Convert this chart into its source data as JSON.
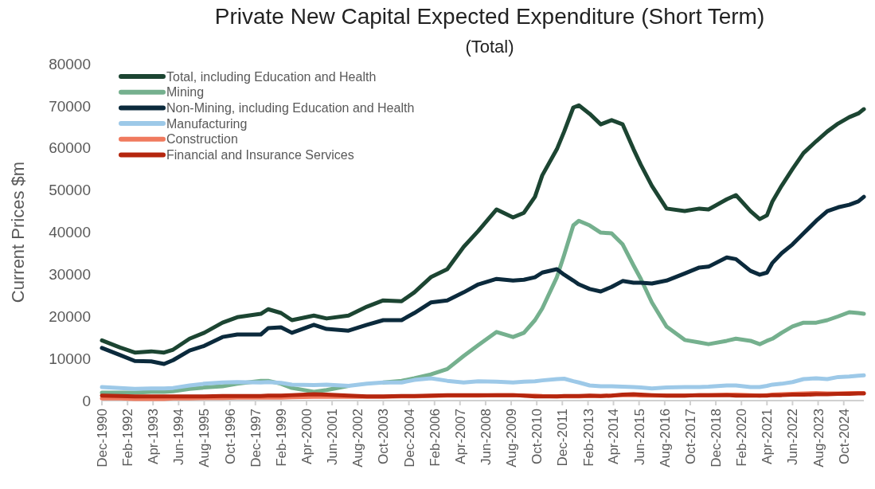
{
  "chart_data": {
    "type": "line",
    "title": "Private New Capital Expected Expenditure (Short Term)",
    "subtitle": "(Total)",
    "ylabel": "Current Prices $m",
    "x": [
      "1990-12",
      "1991-10",
      "1992-06",
      "1993-03",
      "1993-10",
      "1994-03",
      "1994-12",
      "1995-08",
      "1996-06",
      "1997-02",
      "1998-03",
      "1998-07",
      "1999-02",
      "1999-08",
      "2000-08",
      "2001-03",
      "2002-03",
      "2003-01",
      "2003-10",
      "2004-08",
      "2005-03",
      "2005-12",
      "2006-09",
      "2007-06",
      "2008-02",
      "2008-12",
      "2009-09",
      "2010-03",
      "2010-09",
      "2011-01",
      "2011-09",
      "2012-01",
      "2012-06",
      "2012-09",
      "2013-03",
      "2013-09",
      "2014-03",
      "2014-09",
      "2015-03",
      "2015-07",
      "2016-01",
      "2016-09",
      "2017-07",
      "2018-03",
      "2018-08",
      "2019-06",
      "2019-11",
      "2020-07",
      "2020-12",
      "2021-04",
      "2021-07",
      "2021-12",
      "2022-06",
      "2022-12",
      "2023-07",
      "2024-01",
      "2024-07",
      "2025-01",
      "2025-06",
      "2025-09"
    ],
    "series": [
      {
        "name": "Total, including Education and Health",
        "color": "#1c4532",
        "values": [
          14300,
          12600,
          11400,
          11700,
          11400,
          12100,
          14700,
          16100,
          18500,
          19800,
          20600,
          21700,
          20800,
          19100,
          20200,
          19500,
          20200,
          22300,
          23800,
          23600,
          25700,
          29300,
          31200,
          36500,
          40300,
          45400,
          43500,
          44600,
          48400,
          53500,
          59700,
          63900,
          69600,
          70100,
          68100,
          65600,
          66600,
          65600,
          59700,
          56000,
          51000,
          45600,
          45000,
          45600,
          45400,
          47800,
          48800,
          45000,
          43100,
          44000,
          47300,
          51000,
          55000,
          58800,
          61600,
          63900,
          65800,
          67300,
          68200,
          69200
        ]
      },
      {
        "name": "Mining",
        "color": "#75b08e",
        "values": [
          1900,
          1900,
          1900,
          2100,
          2100,
          2200,
          2800,
          3100,
          3400,
          4000,
          4700,
          4700,
          4000,
          3000,
          2100,
          2500,
          3500,
          null,
          4300,
          4700,
          5300,
          6200,
          7500,
          10600,
          13200,
          16300,
          15100,
          16100,
          19100,
          21900,
          29300,
          34600,
          41600,
          42700,
          41600,
          39900,
          39700,
          37100,
          32100,
          28900,
          23300,
          17600,
          14400,
          13800,
          13400,
          14200,
          14700,
          14200,
          13400,
          14200,
          14700,
          16100,
          17600,
          18500,
          18500,
          19100,
          20000,
          21000,
          20800,
          20600
        ]
      },
      {
        "name": "Non-Mining, including Education and Health",
        "color": "#0b2a3c",
        "values": [
          12500,
          10800,
          9400,
          9300,
          8700,
          9600,
          11900,
          13000,
          15100,
          15700,
          15700,
          17200,
          17400,
          16100,
          18000,
          17000,
          16600,
          18000,
          19100,
          19100,
          20800,
          23300,
          23800,
          25700,
          27600,
          28900,
          28500,
          28700,
          29300,
          30400,
          31200,
          29900,
          28500,
          27600,
          26500,
          25900,
          27000,
          28400,
          28000,
          28000,
          27800,
          28500,
          30200,
          31600,
          31800,
          34000,
          33600,
          30800,
          29900,
          30400,
          32700,
          35000,
          37100,
          39700,
          42700,
          45000,
          45900,
          46500,
          47300,
          48400
        ]
      },
      {
        "name": "Manufacturing",
        "color": "#9dc9e8",
        "values": [
          3200,
          3000,
          2800,
          2900,
          2900,
          3000,
          3600,
          4000,
          4300,
          4400,
          4300,
          4400,
          4200,
          3800,
          3700,
          3800,
          3500,
          4000,
          4300,
          4300,
          4900,
          5300,
          4700,
          4300,
          4600,
          4500,
          4300,
          4500,
          4600,
          4800,
          5100,
          5200,
          4600,
          4300,
          3600,
          3400,
          3400,
          3300,
          3200,
          3100,
          2900,
          3100,
          3200,
          3200,
          3300,
          3600,
          3600,
          3200,
          3200,
          3500,
          3800,
          4000,
          4400,
          5100,
          5300,
          5100,
          5600,
          5700,
          5900,
          6000
        ]
      },
      {
        "name": "Construction",
        "color": "#f07a5e",
        "values": [
          500,
          500,
          400,
          400,
          400,
          500,
          500,
          600,
          600,
          700,
          700,
          700,
          700,
          800,
          900,
          900,
          900,
          900,
          900,
          1000,
          1000,
          1100,
          1200,
          1200,
          1200,
          1300,
          1300,
          1200,
          1200,
          1100,
          1000,
          1000,
          1000,
          1000,
          1100,
          1100,
          1200,
          1300,
          1300,
          1200,
          1200,
          1200,
          1200,
          1300,
          1300,
          1400,
          1400,
          1300,
          1200,
          1300,
          1400,
          1500,
          1600,
          1700,
          1800,
          1700,
          1700,
          1800,
          1800,
          1800
        ]
      },
      {
        "name": "Financial and Insurance Services",
        "color": "#b5260e",
        "values": [
          1200,
          1100,
          1000,
          1000,
          1000,
          1000,
          1000,
          1000,
          1100,
          1100,
          1100,
          1200,
          1200,
          1300,
          1500,
          1400,
          1200,
          1000,
          1000,
          1100,
          1100,
          1200,
          1300,
          1300,
          1300,
          1300,
          1300,
          1200,
          1000,
          1000,
          1000,
          1100,
          1100,
          1100,
          1200,
          1100,
          1200,
          1400,
          1500,
          1400,
          1300,
          1200,
          1200,
          1300,
          1300,
          1300,
          1200,
          1200,
          1200,
          1200,
          1300,
          1300,
          1400,
          1400,
          1500,
          1500,
          1600,
          1600,
          1700,
          1700
        ]
      }
    ],
    "xlim": [
      "1990-12",
      "2025-09"
    ],
    "xticks": [
      {
        "value": "1990-12",
        "label": "Dec-1990"
      },
      {
        "value": "1992-02",
        "label": "Feb-1992"
      },
      {
        "value": "1993-04",
        "label": "Apr-1993"
      },
      {
        "value": "1994-06",
        "label": "Jun-1994"
      },
      {
        "value": "1995-08",
        "label": "Aug-1995"
      },
      {
        "value": "1996-10",
        "label": "Oct-1996"
      },
      {
        "value": "1997-12",
        "label": "Dec-1997"
      },
      {
        "value": "1999-02",
        "label": "Feb-1999"
      },
      {
        "value": "2000-04",
        "label": "Apr-2000"
      },
      {
        "value": "2001-06",
        "label": "Jun-2001"
      },
      {
        "value": "2002-08",
        "label": "Aug-2002"
      },
      {
        "value": "2003-10",
        "label": "Oct-2003"
      },
      {
        "value": "2004-12",
        "label": "Dec-2004"
      },
      {
        "value": "2006-02",
        "label": "Feb-2006"
      },
      {
        "value": "2007-04",
        "label": "Apr-2007"
      },
      {
        "value": "2008-06",
        "label": "Jun-2008"
      },
      {
        "value": "2009-08",
        "label": "Aug-2009"
      },
      {
        "value": "2010-10",
        "label": "Oct-2010"
      },
      {
        "value": "2011-12",
        "label": "Dec-2011"
      },
      {
        "value": "2013-02",
        "label": "Feb-2013"
      },
      {
        "value": "2014-04",
        "label": "Apr-2014"
      },
      {
        "value": "2015-06",
        "label": "Jun-2015"
      },
      {
        "value": "2016-08",
        "label": "Aug-2016"
      },
      {
        "value": "2017-10",
        "label": "Oct-2017"
      },
      {
        "value": "2018-12",
        "label": "Dec-2018"
      },
      {
        "value": "2020-02",
        "label": "Feb-2020"
      },
      {
        "value": "2021-04",
        "label": "Apr-2021"
      },
      {
        "value": "2022-06",
        "label": "Jun-2022"
      },
      {
        "value": "2023-08",
        "label": "Aug-2023"
      },
      {
        "value": "2024-10",
        "label": "Oct-2024"
      }
    ],
    "ylim": [
      0,
      80000
    ],
    "yticks": [
      0,
      10000,
      20000,
      30000,
      40000,
      50000,
      60000,
      70000,
      80000
    ],
    "grid": false,
    "legend": "top left",
    "marker": "none",
    "line_style": "solid"
  }
}
